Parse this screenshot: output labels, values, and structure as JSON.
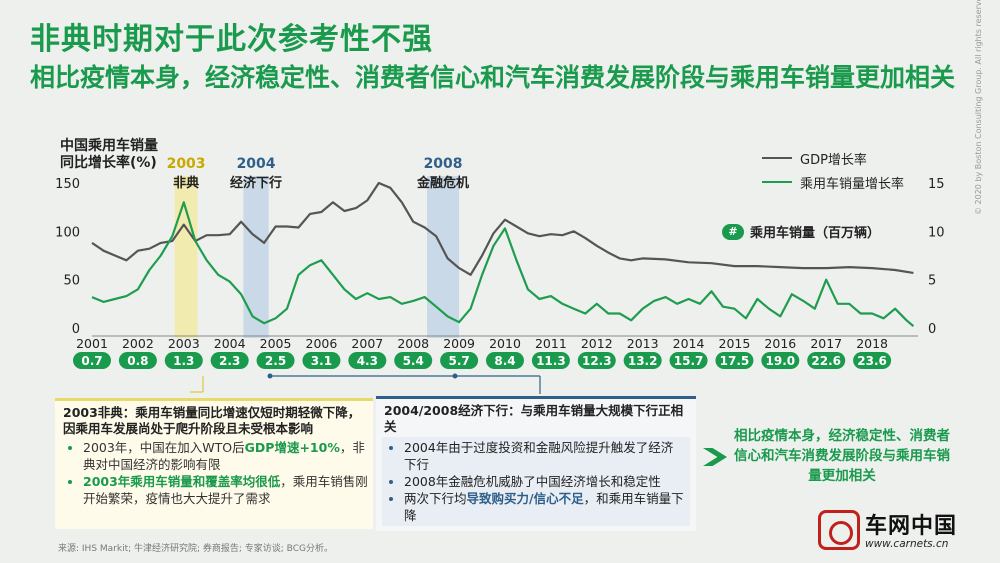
{
  "title": "非典时期对于此次参考性不强",
  "subtitle": "相比疫情本身，经济稳定性、消费者信心和汽车消费发展阶段与乘用车销量更加相关",
  "y_axis_label_line1": "中国乘用车销量",
  "y_axis_label_line2": "同比增长率(%)",
  "legend": {
    "gdp": "GDP增长率",
    "sales": "乘用车销量增长率",
    "volume": "乘用车销量（百万辆）"
  },
  "colors": {
    "gdp": "#555555",
    "sales": "#1f9d4f",
    "accent": "#1a9a4c",
    "band_2003": "#f2ebb0",
    "band_blue": "#c9d9e8"
  },
  "bands": [
    {
      "year": "2003",
      "label": "非典",
      "from": 2002.8,
      "to": 2003.3,
      "color": "#f2ebb0"
    },
    {
      "year": "2004",
      "label": "经济下行",
      "from": 2004.3,
      "to": 2004.85,
      "color": "#c9d9e8"
    },
    {
      "year": "2008",
      "label": "金融危机",
      "from": 2008.3,
      "to": 2009.0,
      "color": "#c9d9e8"
    }
  ],
  "chart_data": {
    "type": "line",
    "x_range": [
      2001,
      2019
    ],
    "left_axis": {
      "ylim": [
        0,
        150
      ],
      "ticks": [
        "0",
        "50",
        "100",
        "150"
      ]
    },
    "right_axis": {
      "ylim": [
        0,
        15
      ],
      "ticks": [
        "0",
        "5",
        "10",
        "15"
      ]
    },
    "x_ticks": [
      "2001",
      "2002",
      "2003",
      "2004",
      "2005",
      "2006",
      "2007",
      "2008",
      "2009",
      "2010",
      "2011",
      "2012",
      "2013",
      "2014",
      "2015",
      "2016",
      "2017",
      "2018"
    ],
    "series": [
      {
        "name": "GDP增长率",
        "axis": "left",
        "x": [
          2001,
          2001.25,
          2001.5,
          2001.75,
          2002,
          2002.25,
          2002.5,
          2002.75,
          2003,
          2003.25,
          2003.5,
          2003.75,
          2004,
          2004.25,
          2004.5,
          2004.75,
          2005,
          2005.25,
          2005.5,
          2005.75,
          2006,
          2006.25,
          2006.5,
          2006.75,
          2007,
          2007.25,
          2007.5,
          2007.75,
          2008,
          2008.25,
          2008.5,
          2008.75,
          2009,
          2009.25,
          2009.5,
          2009.75,
          2010,
          2010.25,
          2010.5,
          2010.75,
          2011,
          2011.25,
          2011.5,
          2011.75,
          2012,
          2012.25,
          2012.5,
          2012.75,
          2013,
          2013.5,
          2014,
          2014.5,
          2015,
          2015.5,
          2016,
          2016.5,
          2017,
          2017.5,
          2018,
          2018.5,
          2018.9
        ],
        "y": [
          88,
          80,
          75,
          70,
          80,
          82,
          88,
          90,
          107,
          90,
          96,
          96,
          97,
          110,
          97,
          88,
          105,
          105,
          104,
          118,
          120,
          130,
          121,
          124,
          132,
          150,
          145,
          130,
          110,
          104,
          95,
          72,
          62,
          55,
          75,
          98,
          112,
          105,
          98,
          95,
          97,
          96,
          100,
          93,
          85,
          78,
          72,
          70,
          72,
          71,
          68,
          67,
          64,
          64,
          63,
          62,
          62,
          63,
          62,
          60,
          57
        ]
      },
      {
        "name": "乘用车销量增长率",
        "axis": "right",
        "x": [
          2001,
          2001.25,
          2001.5,
          2001.75,
          2002,
          2002.25,
          2002.5,
          2002.75,
          2003,
          2003.25,
          2003.5,
          2003.75,
          2004,
          2004.25,
          2004.5,
          2004.75,
          2005,
          2005.25,
          2005.5,
          2005.75,
          2006,
          2006.25,
          2006.5,
          2006.75,
          2007,
          2007.25,
          2007.5,
          2007.75,
          2008,
          2008.25,
          2008.5,
          2008.75,
          2009,
          2009.25,
          2009.5,
          2009.75,
          2010,
          2010.25,
          2010.5,
          2010.75,
          2011,
          2011.25,
          2011.5,
          2011.75,
          2012,
          2012.25,
          2012.5,
          2012.75,
          2013,
          2013.25,
          2013.5,
          2013.75,
          2014,
          2014.25,
          2014.5,
          2014.75,
          2015,
          2015.25,
          2015.5,
          2015.75,
          2016,
          2016.25,
          2016.5,
          2016.75,
          2017,
          2017.25,
          2017.5,
          2017.75,
          2018,
          2018.25,
          2018.5,
          2018.75,
          2018.9
        ],
        "y": [
          3.2,
          2.7,
          3.0,
          3.3,
          4.0,
          6.0,
          7.5,
          9.5,
          13.0,
          9.0,
          7.0,
          5.5,
          4.8,
          3.5,
          1.2,
          0.5,
          1.0,
          2.0,
          5.5,
          6.5,
          7.0,
          5.5,
          4.0,
          3.0,
          3.6,
          3.0,
          3.2,
          2.5,
          2.8,
          3.2,
          2.2,
          1.2,
          0.6,
          2.0,
          5.5,
          8.5,
          10.3,
          7.0,
          4.0,
          3.0,
          3.3,
          2.5,
          2.0,
          1.5,
          2.5,
          1.5,
          1.5,
          0.8,
          2.0,
          2.8,
          3.2,
          2.5,
          3.0,
          2.5,
          3.8,
          2.2,
          2.0,
          1.0,
          3.0,
          2.0,
          1.2,
          3.5,
          2.8,
          2.0,
          5.0,
          2.5,
          2.5,
          1.5,
          1.5,
          1.0,
          2.0,
          0.8,
          0.2
        ]
      }
    ],
    "sales_volume_millions": [
      "0.7",
      "0.8",
      "1.3",
      "2.3",
      "2.5",
      "3.1",
      "4.3",
      "5.4",
      "5.7",
      "8.4",
      "11.3",
      "12.3",
      "13.2",
      "15.7",
      "17.5",
      "19.0",
      "22.6",
      "23.6"
    ]
  },
  "box1": {
    "heading": "2003非典：乘用车销量同比增速仅短时期轻微下降，因乘用车发展尚处于爬升阶段且未受根本影响",
    "bullet1_a": "2003年，中国在加入WTO后",
    "bullet1_hl": "GDP增速+10%",
    "bullet1_b": "，非典对中国经济的影响有限",
    "bullet2_hl": "2003年乘用车销量和覆盖率均很低",
    "bullet2_b": "，乘用车销售刚开始繁荣，疫情也大大提升了需求"
  },
  "box2": {
    "heading": "2004/2008经济下行：与乘用车销量大规模下行正相关",
    "bullet1": "2004年由于过度投资和金融风险提升触发了经济下行",
    "bullet2": "2008年金融危机威胁了中国经济增长和稳定性",
    "bullet3_a": "两次下行均",
    "bullet3_hl": "导致购买力/信心不足",
    "bullet3_b": "，和乘用车销量下降"
  },
  "conclusion": "相比疫情本身，经济稳定性、消费者信心和汽车消费发展阶段与乘用车销量更加相关",
  "source": "来源: IHS Markit; 牛津经济研究院; 券商报告; 专家访谈; BCG分析。",
  "logo": {
    "name": "车网中国",
    "url": "www.carnets.cn"
  },
  "copyright": "© 2020 by Boston Consulting Group. All rights reserved."
}
